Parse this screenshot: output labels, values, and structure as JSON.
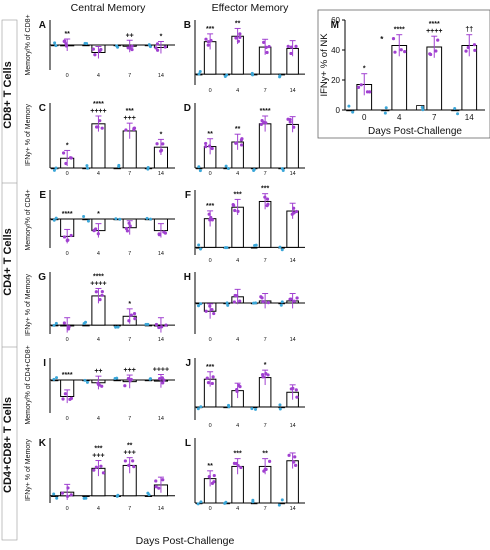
{
  "figure": {
    "col_headers": [
      "Central Memory",
      "Effector Memory"
    ],
    "row_labels": [
      "CD8+ T Cells",
      "CD4+ T Cells",
      "CD4+CD8+ T Cells"
    ],
    "xlabel": "Days Post-Challenge"
  },
  "chart_data": [
    {
      "panel": "A",
      "type": "bar",
      "categories": [
        "0",
        "4",
        "7",
        "14"
      ],
      "values": [
        0,
        -3,
        -0.5,
        -1
      ],
      "ylabel": "Memory/% of CD8+",
      "ylim": [
        -10,
        10
      ],
      "annotations": [
        "**",
        "",
        "++",
        "*"
      ]
    },
    {
      "panel": "B",
      "type": "bar",
      "categories": [
        "0",
        "4",
        "7",
        "14"
      ],
      "values": [
        24,
        28,
        20,
        19
      ],
      "ylabel": "",
      "ylim": [
        -8,
        40
      ],
      "annotations": [
        "***",
        "**",
        "",
        ""
      ]
    },
    {
      "panel": "C",
      "type": "bar",
      "categories": [
        "0",
        "4",
        "7",
        "14"
      ],
      "values": [
        15,
        68,
        57,
        32
      ],
      "ylabel": "IFNy+ % of Memory",
      "ylim": [
        0,
        100
      ],
      "annotations": [
        "*",
        "****\n++++",
        "***\n+++",
        "*"
      ]
    },
    {
      "panel": "D",
      "type": "bar",
      "categories": [
        "0",
        "4",
        "7",
        "14"
      ],
      "values": [
        33,
        40,
        68,
        67
      ],
      "ylabel": "",
      "ylim": [
        0,
        100
      ],
      "annotations": [
        "**",
        "**",
        "****",
        ""
      ]
    },
    {
      "panel": "E",
      "type": "bar",
      "categories": [
        "0",
        "4",
        "7",
        "14"
      ],
      "values": [
        -6,
        -4,
        -3,
        -4
      ],
      "ylabel": "Memory/% of CD4+",
      "ylim": [
        -10,
        10
      ],
      "annotations": [
        "****",
        "*",
        "",
        ""
      ]
    },
    {
      "panel": "F",
      "type": "bar",
      "categories": [
        "0",
        "4",
        "7",
        "14"
      ],
      "values": [
        30,
        42,
        48,
        38
      ],
      "ylabel": "",
      "ylim": [
        -8,
        60
      ],
      "annotations": [
        "***",
        "***",
        "***",
        ""
      ]
    },
    {
      "panel": "G",
      "type": "bar",
      "categories": [
        "0",
        "4",
        "7",
        "14"
      ],
      "values": [
        0,
        33,
        10,
        0
      ],
      "ylabel": "IFNy+ % of Memory",
      "ylim": [
        -10,
        60
      ],
      "annotations": [
        "",
        "****\n++++",
        "*",
        ""
      ]
    },
    {
      "panel": "H",
      "type": "bar",
      "categories": [
        "0",
        "4",
        "7",
        "14"
      ],
      "values": [
        -4,
        3,
        1,
        1
      ],
      "ylabel": "",
      "ylim": [
        -15,
        15
      ],
      "annotations": [
        "",
        "",
        "",
        ""
      ]
    },
    {
      "panel": "I",
      "type": "bar",
      "categories": [
        "0",
        "4",
        "7",
        "14"
      ],
      "values": [
        -3,
        -0.5,
        -0.3,
        -0.2
      ],
      "ylabel": "Memory/% of CD4+CD8+",
      "ylim": [
        -6,
        4
      ],
      "annotations": [
        "****",
        "++",
        "+++",
        "++++"
      ]
    },
    {
      "panel": "J",
      "type": "bar",
      "categories": [
        "0",
        "4",
        "7",
        "14"
      ],
      "values": [
        17,
        10,
        18,
        9
      ],
      "ylabel": "",
      "ylim": [
        -8,
        30
      ],
      "annotations": [
        "***",
        "",
        "*",
        ""
      ]
    },
    {
      "panel": "K",
      "type": "bar",
      "categories": [
        "0",
        "4",
        "7",
        "14"
      ],
      "values": [
        5,
        38,
        42,
        15
      ],
      "ylabel": "IFNy+ % of Memory",
      "ylim": [
        -10,
        80
      ],
      "annotations": [
        "",
        "***\n+++",
        "**\n+++",
        ""
      ]
    },
    {
      "panel": "L",
      "type": "bar",
      "categories": [
        "0",
        "4",
        "7",
        "14"
      ],
      "values": [
        30,
        45,
        45,
        52
      ],
      "ylabel": "",
      "ylim": [
        0,
        80
      ],
      "annotations": [
        "**",
        "***",
        "**",
        ""
      ]
    },
    {
      "panel": "M",
      "type": "bar",
      "categories": [
        "0",
        "4",
        "7",
        "14"
      ],
      "values": [
        17,
        43,
        42,
        43
      ],
      "control_values": [
        0,
        0,
        3,
        0
      ],
      "ylabel": "IFNy+ % of NK",
      "xlabel": "Days Post-Challenge",
      "ylim": [
        0,
        60
      ],
      "yticks": [
        0,
        20,
        40,
        60
      ],
      "annotations": [
        "*",
        "****",
        "****\n++++",
        "††"
      ],
      "extra_annotation": "*"
    }
  ],
  "tick_labels": {
    "x": [
      "0",
      "4",
      "7",
      "14"
    ],
    "m_y": [
      "0",
      "20",
      "40",
      "60"
    ]
  },
  "colors": {
    "point_a": "#a040d0",
    "point_b": "#3aa6d8",
    "bar": "#000000"
  }
}
